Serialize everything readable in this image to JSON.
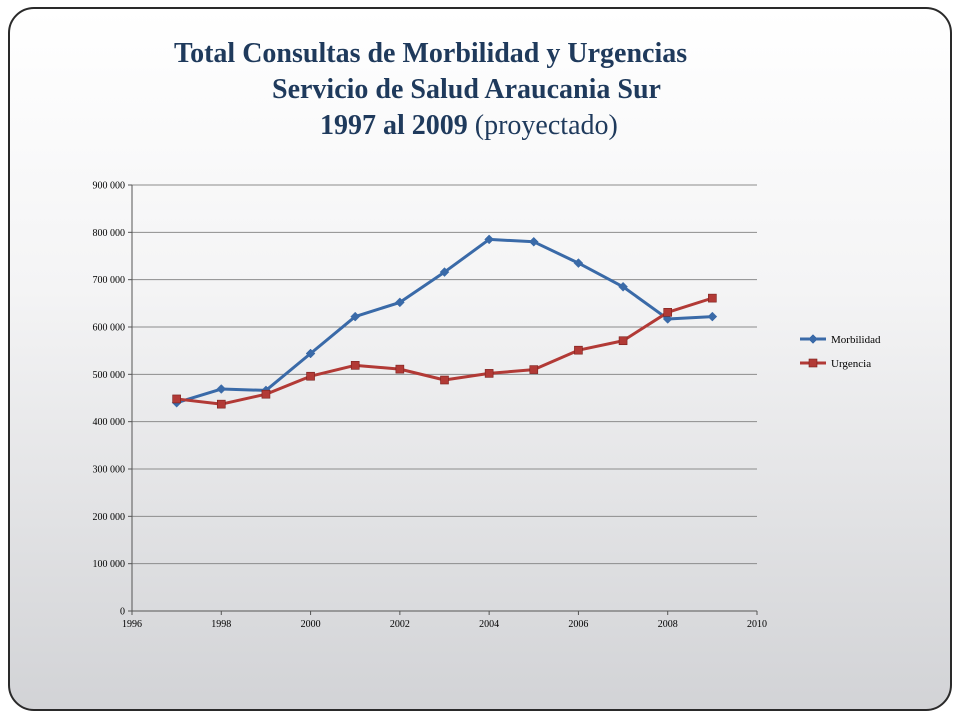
{
  "slide": {
    "title_line1": "Total Consultas de Morbilidad y Urgencias",
    "title_line2": "Servicio de Salud Araucania Sur",
    "title_line3_bold": "1997 al 2009",
    "title_line3_normal": "(proyectado)"
  },
  "colors": {
    "title": "#1f3a5c",
    "morbilidad": "#3a6aa8",
    "urgencia": "#b23a36",
    "grid": "#8c8c8c"
  },
  "chart_data": {
    "type": "line",
    "title": "Total Consultas de Morbilidad y Urgencias Servicio de Salud Araucania Sur 1997 al 2009 (proyectado)",
    "xlim": [
      1996,
      2010
    ],
    "ylim": [
      0,
      900000
    ],
    "x_ticks": [
      1996,
      1998,
      2000,
      2002,
      2004,
      2006,
      2008,
      2010
    ],
    "y_ticks": [
      0,
      100000,
      200000,
      300000,
      400000,
      500000,
      600000,
      700000,
      800000,
      900000
    ],
    "y_tick_labels": [
      "0",
      "100 000",
      "200 000",
      "300 000",
      "400 000",
      "500 000",
      "600 000",
      "700 000",
      "800 000",
      "900 000"
    ],
    "grid": "horizontal",
    "legend_position": "right",
    "x": [
      1997,
      1998,
      1999,
      2000,
      2001,
      2002,
      2003,
      2004,
      2005,
      2006,
      2007,
      2008,
      2009
    ],
    "series": [
      {
        "name": "Morbilidad",
        "marker": "diamond",
        "values": [
          440000,
          469000,
          466000,
          544000,
          622000,
          652000,
          716000,
          785000,
          780000,
          735000,
          685000,
          617000,
          622000
        ]
      },
      {
        "name": "Urgencia",
        "marker": "square",
        "values": [
          448000,
          437000,
          458000,
          496000,
          519000,
          511000,
          488000,
          502000,
          510000,
          551000,
          571000,
          631000,
          661000
        ]
      }
    ]
  }
}
